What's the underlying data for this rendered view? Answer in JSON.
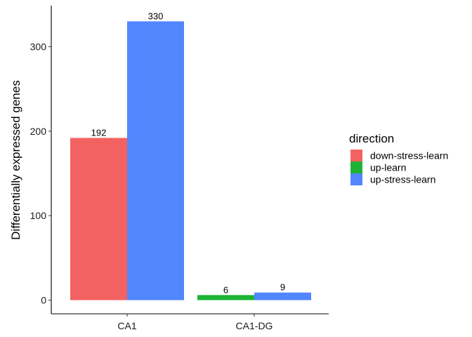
{
  "chart_data": {
    "type": "bar",
    "title": "",
    "xlabel": "",
    "ylabel": "Differentially expressed genes",
    "categories": [
      "CA1",
      "CA1-DG"
    ],
    "ylim": [
      0,
      350
    ],
    "yticks": [
      0,
      100,
      200,
      300
    ],
    "grid": false,
    "legend": {
      "title": "direction",
      "placement": "right"
    },
    "series": [
      {
        "name": "down-stress-learn",
        "color": "#F26260",
        "values": [
          192,
          null
        ]
      },
      {
        "name": "up-learn",
        "color": "#1EB335",
        "values": [
          null,
          6
        ]
      },
      {
        "name": "up-stress-learn",
        "color": "#5186FF",
        "values": [
          330,
          9
        ]
      }
    ]
  }
}
